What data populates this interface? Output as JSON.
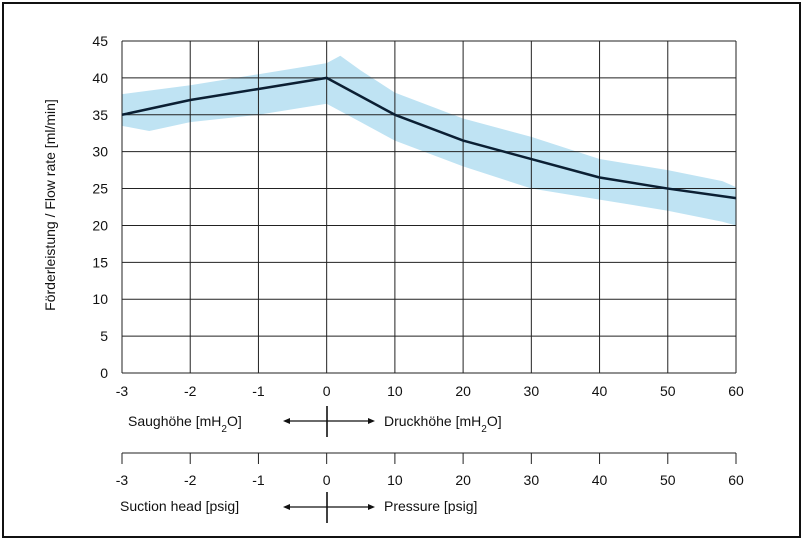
{
  "chart_data": {
    "type": "line",
    "ylabel": "Förderleistung / Flow rate [ml/min]",
    "ylim": [
      0,
      45
    ],
    "yticks": [
      "0",
      "5",
      "10",
      "15",
      "20",
      "25",
      "30",
      "35",
      "40",
      "45"
    ],
    "x_segments": [
      "-3",
      "-2",
      "-1",
      "0",
      "10",
      "20",
      "30",
      "40",
      "50",
      "60"
    ],
    "axis1_tick_labels": [
      "-3",
      "-2",
      "-1",
      "0",
      "10",
      "20",
      "30",
      "40",
      "50",
      "60"
    ],
    "axis2_tick_labels": [
      "-3",
      "-2",
      "-1",
      "0",
      "10",
      "20",
      "30",
      "40",
      "50",
      "60"
    ],
    "axis1_left_label": "Saughöhe [mH",
    "axis1_left_sub": "2",
    "axis1_left_end": "O]",
    "axis1_right_label": "Druckhöhe [mH",
    "axis1_right_sub": "2",
    "axis1_right_end": "O]",
    "axis2_left_label": "Suction head [psig]",
    "axis2_right_label": "Pressure [psig]",
    "grid": true,
    "series": [
      {
        "color": "#0b1f33",
        "points": [
          [
            -3,
            35
          ],
          [
            -2,
            37
          ],
          [
            -1,
            38.5
          ],
          [
            0,
            40
          ],
          [
            10,
            35
          ],
          [
            20,
            31.5
          ],
          [
            30,
            29
          ],
          [
            40,
            26.5
          ],
          [
            50,
            25
          ],
          [
            60,
            23.7
          ]
        ]
      }
    ],
    "band": {
      "color": "#bfe3f3",
      "upper": [
        [
          -3,
          37.8
        ],
        [
          -2,
          39
        ],
        [
          -1,
          40.5
        ],
        [
          0,
          42
        ],
        [
          2,
          43
        ],
        [
          5,
          41
        ],
        [
          10,
          38
        ],
        [
          20,
          34.5
        ],
        [
          30,
          32
        ],
        [
          40,
          29
        ],
        [
          50,
          27.5
        ],
        [
          58,
          26
        ],
        [
          60,
          25.2
        ]
      ],
      "lower": [
        [
          -3,
          33.5
        ],
        [
          -2.6,
          32.8
        ],
        [
          -2,
          34
        ],
        [
          -1,
          35
        ],
        [
          0,
          36.5
        ],
        [
          5,
          34
        ],
        [
          10,
          31.5
        ],
        [
          20,
          28
        ],
        [
          30,
          25
        ],
        [
          40,
          23.5
        ],
        [
          50,
          22
        ],
        [
          58,
          20.5
        ],
        [
          60,
          20
        ]
      ]
    }
  }
}
